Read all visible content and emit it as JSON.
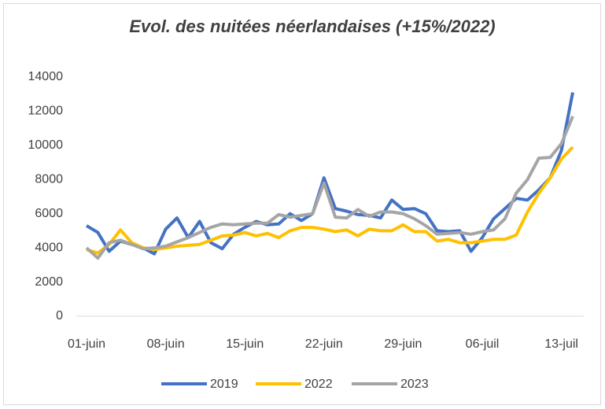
{
  "chart_data": {
    "type": "line",
    "title": "Evol. des nuitées néerlandaises (+15%/2022)",
    "categories": [
      "01-juin",
      null,
      null,
      null,
      null,
      null,
      null,
      "08-juin",
      null,
      null,
      null,
      null,
      null,
      null,
      "15-juin",
      null,
      null,
      null,
      null,
      null,
      null,
      "22-juin",
      null,
      null,
      null,
      null,
      null,
      null,
      "29-juin",
      null,
      null,
      null,
      null,
      null,
      null,
      "06-juil",
      null,
      null,
      null,
      null,
      null,
      null,
      "13-juil",
      null
    ],
    "series": [
      {
        "name": "2019",
        "color": "#4472c4",
        "values": [
          5300,
          4900,
          3800,
          4400,
          4200,
          4000,
          3650,
          5100,
          5750,
          4600,
          5550,
          4300,
          3950,
          4800,
          5200,
          5550,
          5350,
          5400,
          6000,
          5600,
          6000,
          8100,
          6300,
          6150,
          5950,
          5900,
          5750,
          6800,
          6250,
          6300,
          6000,
          5000,
          4950,
          5000,
          3800,
          4600,
          5700,
          6300,
          6900,
          6800,
          7400,
          8100,
          9700,
          13100
        ]
      },
      {
        "name": "2022",
        "color": "#ffc000",
        "values": [
          3900,
          3700,
          4200,
          5050,
          4300,
          4000,
          3900,
          4000,
          4100,
          4150,
          4200,
          4450,
          4700,
          4750,
          4900,
          4700,
          4850,
          4600,
          5000,
          5200,
          5200,
          5100,
          4950,
          5050,
          4700,
          5100,
          5000,
          5000,
          5350,
          4950,
          4950,
          4400,
          4500,
          4300,
          4300,
          4400,
          4500,
          4500,
          4750,
          6100,
          7200,
          8100,
          9200,
          9900
        ]
      },
      {
        "name": "2023",
        "color": "#a5a5a5",
        "values": [
          4000,
          3400,
          4300,
          4450,
          4200,
          3950,
          4000,
          4100,
          4350,
          4600,
          4900,
          5200,
          5400,
          5350,
          5400,
          5450,
          5450,
          5950,
          5800,
          5900,
          6000,
          7800,
          5800,
          5750,
          6250,
          5850,
          6100,
          6100,
          6000,
          5700,
          5300,
          4800,
          4850,
          4900,
          4800,
          4950,
          5050,
          5700,
          7200,
          8000,
          9250,
          9300,
          10100,
          11700
        ]
      }
    ],
    "ylim": [
      0,
      14000
    ],
    "yticks": [
      0,
      2000,
      4000,
      6000,
      8000,
      10000,
      12000,
      14000
    ],
    "grid": false
  }
}
